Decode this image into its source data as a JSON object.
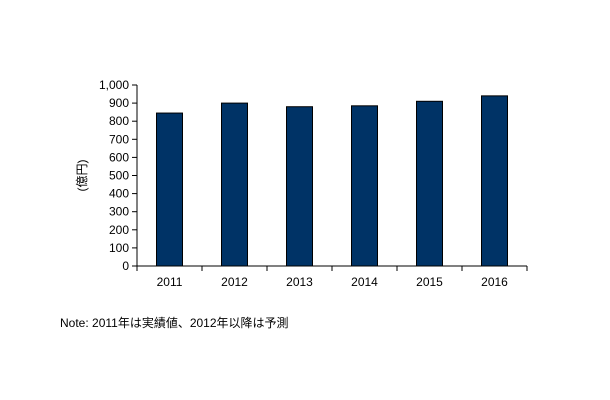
{
  "chart_data": {
    "type": "bar",
    "categories": [
      "2011",
      "2012",
      "2013",
      "2014",
      "2015",
      "2016"
    ],
    "values": [
      845,
      900,
      880,
      885,
      910,
      940
    ],
    "ylabel": "(億円)",
    "xlabel": "",
    "ylim": [
      0,
      1000
    ],
    "yticks": [
      0,
      100,
      200,
      300,
      400,
      500,
      600,
      700,
      800,
      900,
      1000
    ],
    "ytick_labels": [
      "0",
      "100",
      "200",
      "300",
      "400",
      "500",
      "600",
      "700",
      "800",
      "900",
      "1,000"
    ],
    "grid": false,
    "legend": "none",
    "bar_color": "#003366"
  },
  "note": "Note: 2011年は実績値、2012年以降は予測"
}
